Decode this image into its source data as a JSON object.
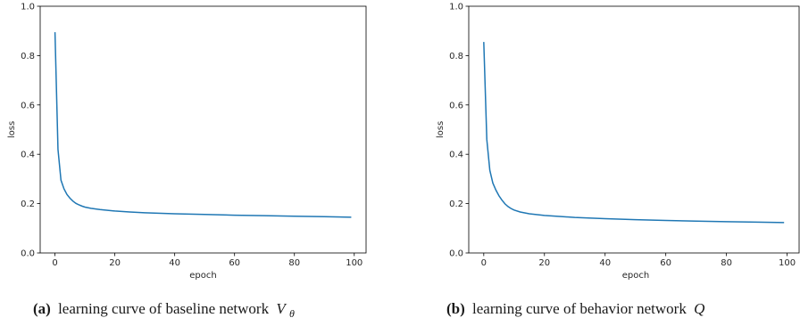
{
  "chart_data": [
    {
      "type": "line",
      "xlabel": "epoch",
      "ylabel": "loss",
      "xlim": [
        -4.95,
        103.95
      ],
      "ylim": [
        0.0,
        1.0
      ],
      "xticks": [
        "0",
        "20",
        "40",
        "60",
        "80",
        "100"
      ],
      "yticks": [
        "0.0",
        "0.2",
        "0.4",
        "0.6",
        "0.8",
        "1.0"
      ],
      "grid": false,
      "color": "#1f77b4",
      "caption": {
        "label": "(a)",
        "text": "learning curve of baseline network",
        "symbol": "V",
        "subscript": "θ"
      },
      "series": [
        {
          "x": [
            0,
            1,
            2,
            3,
            4,
            5,
            6,
            7,
            8,
            9,
            10,
            12,
            15,
            20,
            25,
            30,
            40,
            50,
            60,
            70,
            80,
            90,
            99
          ],
          "y": [
            0.895,
            0.42,
            0.295,
            0.26,
            0.237,
            0.222,
            0.21,
            0.201,
            0.195,
            0.19,
            0.186,
            0.181,
            0.176,
            0.17,
            0.166,
            0.163,
            0.159,
            0.156,
            0.153,
            0.151,
            0.149,
            0.147,
            0.145
          ]
        }
      ]
    },
    {
      "type": "line",
      "xlabel": "epoch",
      "ylabel": "loss",
      "xlim": [
        -4.95,
        103.95
      ],
      "ylim": [
        0.0,
        1.0
      ],
      "xticks": [
        "0",
        "20",
        "40",
        "60",
        "80",
        "100"
      ],
      "yticks": [
        "0.0",
        "0.2",
        "0.4",
        "0.6",
        "0.8",
        "1.0"
      ],
      "grid": false,
      "color": "#1f77b4",
      "caption": {
        "label": "(b)",
        "text": "learning curve of behavior network",
        "symbol": "Q",
        "subscript": ""
      },
      "series": [
        {
          "x": [
            0,
            1,
            2,
            3,
            4,
            5,
            6,
            7,
            8,
            9,
            10,
            12,
            15,
            20,
            25,
            30,
            40,
            50,
            60,
            70,
            80,
            90,
            99
          ],
          "y": [
            0.855,
            0.46,
            0.335,
            0.283,
            0.255,
            0.232,
            0.214,
            0.199,
            0.188,
            0.18,
            0.174,
            0.166,
            0.159,
            0.152,
            0.148,
            0.144,
            0.139,
            0.135,
            0.132,
            0.129,
            0.127,
            0.125,
            0.123
          ]
        }
      ]
    }
  ]
}
